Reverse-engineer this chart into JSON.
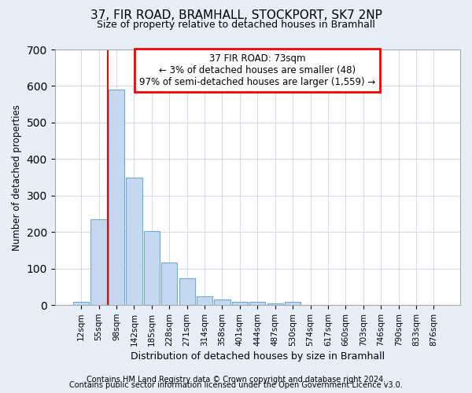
{
  "title1": "37, FIR ROAD, BRAMHALL, STOCKPORT, SK7 2NP",
  "title2": "Size of property relative to detached houses in Bramhall",
  "xlabel": "Distribution of detached houses by size in Bramhall",
  "ylabel": "Number of detached properties",
  "bar_labels": [
    "12sqm",
    "55sqm",
    "98sqm",
    "142sqm",
    "185sqm",
    "228sqm",
    "271sqm",
    "314sqm",
    "358sqm",
    "401sqm",
    "444sqm",
    "487sqm",
    "530sqm",
    "574sqm",
    "617sqm",
    "660sqm",
    "703sqm",
    "746sqm",
    "790sqm",
    "833sqm",
    "876sqm"
  ],
  "bar_values": [
    8,
    235,
    590,
    350,
    203,
    117,
    73,
    25,
    15,
    10,
    10,
    5,
    8,
    0,
    0,
    0,
    0,
    0,
    0,
    0,
    0
  ],
  "bar_color": "#c5d8f0",
  "bar_edge_color": "#6aaad4",
  "red_line_x": 1.5,
  "annotation_line1": "37 FIR ROAD: 73sqm",
  "annotation_line2": "← 3% of detached houses are smaller (48)",
  "annotation_line3": "97% of semi-detached houses are larger (1,559) →",
  "ylim": [
    0,
    700
  ],
  "yticks": [
    0,
    100,
    200,
    300,
    400,
    500,
    600,
    700
  ],
  "footer1": "Contains HM Land Registry data © Crown copyright and database right 2024.",
  "footer2": "Contains public sector information licensed under the Open Government Licence v3.0.",
  "bg_color": "#e8eef8",
  "plot_bg_color": "#ffffff",
  "grid_color": "#c8d4e8"
}
